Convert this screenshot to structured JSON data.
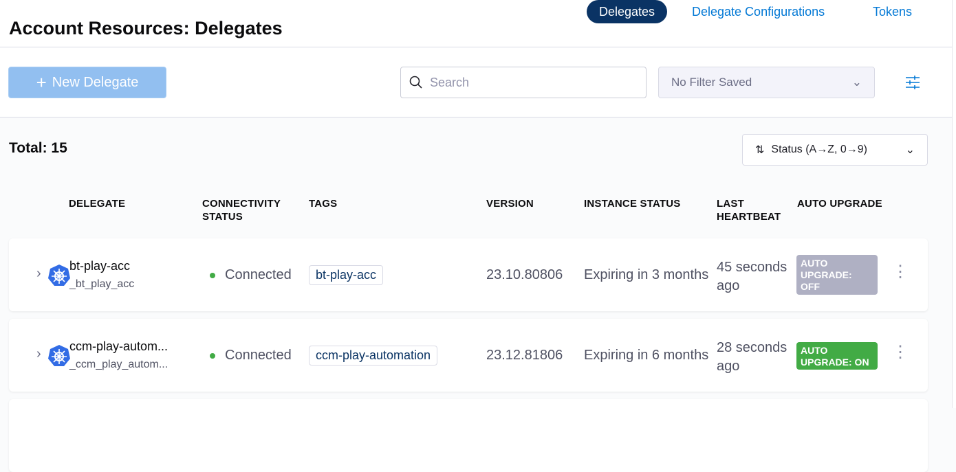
{
  "header": {
    "title": "Account Resources: Delegates",
    "tabs": [
      {
        "label": "Delegates",
        "active": true
      },
      {
        "label": "Delegate Configurations"
      },
      {
        "label": "Tokens"
      }
    ]
  },
  "toolbar": {
    "new_label": "New Delegate",
    "search_placeholder": "Search",
    "filter_value": "No Filter Saved"
  },
  "list": {
    "total": "Total: 15",
    "sort": "Status (A→Z, 0→9)",
    "columns": [
      "DELEGATE",
      "CONNECTIVITY STATUS",
      "TAGS",
      "VERSION",
      "INSTANCE STATUS",
      "LAST HEARTBEAT",
      "AUTO UPGRADE"
    ],
    "rows": [
      {
        "name": "bt-play-acc",
        "identifier": "_bt_play_acc",
        "status": "Connected",
        "tag": "bt-play-acc",
        "version": "23.10.80806",
        "instance": "Expiring in 3 months",
        "heartbeat": "45 seconds ago",
        "upgrade": "AUTO UPGRADE: OFF",
        "upgrade_color": "#afb0c3"
      },
      {
        "name": "ccm-play-autom...",
        "identifier": "_ccm_play_autom...",
        "status": "Connected",
        "tag": "ccm-play-automation",
        "version": "23.12.81806",
        "instance": "Expiring in 6 months",
        "heartbeat": "28 seconds ago",
        "upgrade": "AUTO UPGRADE: ON",
        "upgrade_color": "#42ab45"
      }
    ]
  },
  "colors": {
    "accent": "#0278d5",
    "active_tab": "#0a3364",
    "connected": "#42ab45"
  }
}
